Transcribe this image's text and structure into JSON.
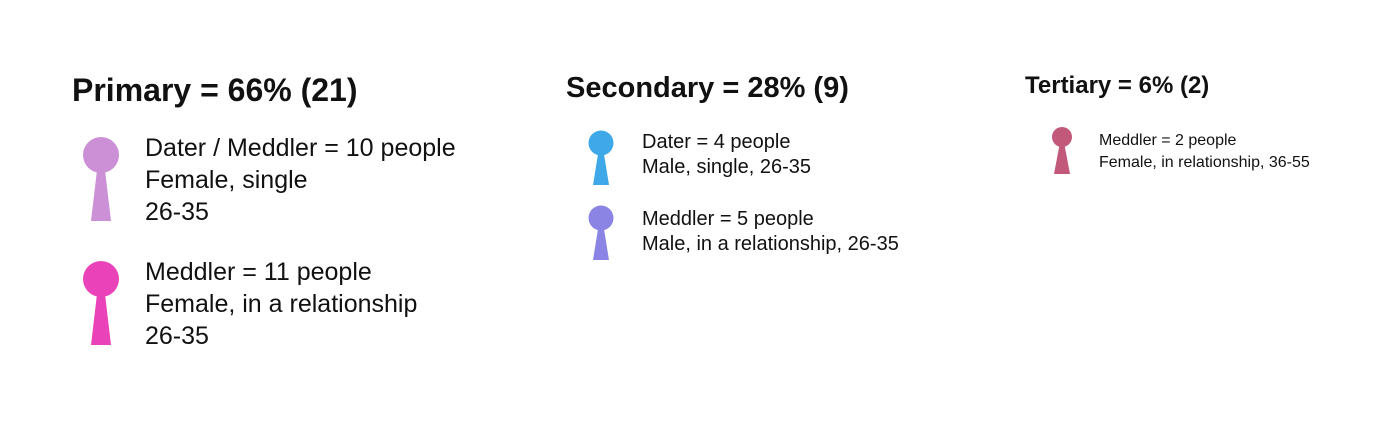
{
  "segments": [
    {
      "heading": "Primary = 66% (21)",
      "personas": [
        {
          "icon": "person-icon",
          "color": "#cc90d6",
          "lines": [
            "Dater / Meddler = 10 people",
            "Female, single",
            "26-35"
          ]
        },
        {
          "icon": "person-icon",
          "color": "#ea43b9",
          "lines": [
            "Meddler = 11 people",
            "Female, in a relationship",
            "26-35"
          ]
        }
      ]
    },
    {
      "heading": "Secondary = 28% (9)",
      "personas": [
        {
          "icon": "person-icon",
          "color": "#3ea8e8",
          "lines": [
            "Dater = 4 people",
            "Male, single, 26-35"
          ]
        },
        {
          "icon": "person-icon",
          "color": "#8b84e4",
          "lines": [
            "Meddler = 5 people",
            "Male, in a relationship, 26-35"
          ]
        }
      ]
    },
    {
      "heading": "Tertiary = 6% (2)",
      "personas": [
        {
          "icon": "person-icon",
          "color": "#c2587a",
          "lines": [
            "Meddler = 2 people",
            "Female, in relationship, 36-55"
          ]
        }
      ]
    }
  ]
}
